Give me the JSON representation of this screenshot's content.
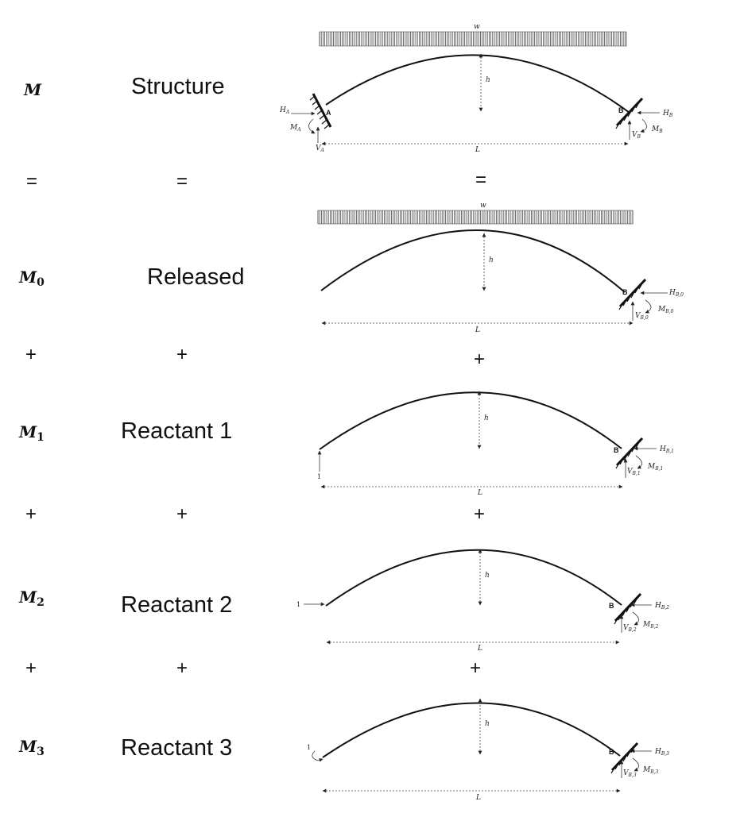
{
  "rows": [
    {
      "symbol": "M",
      "subscript": "",
      "label": "Structure",
      "load": "w",
      "height": "h",
      "span": "L",
      "point_a": "A",
      "point_b": "B",
      "a_reactions": {
        "h": {
          "base": "H",
          "sub": "A"
        },
        "m": {
          "base": "M",
          "sub": "A"
        },
        "v": {
          "base": "V",
          "sub": "A"
        }
      },
      "b_reactions": {
        "h": {
          "base": "H",
          "sub": "B"
        },
        "m": {
          "base": "M",
          "sub": "B"
        },
        "v": {
          "base": "V",
          "sub": "B"
        }
      },
      "unit_load": ""
    },
    {
      "symbol": "M",
      "subscript": "0",
      "label": "Released",
      "load": "w",
      "height": "h",
      "span": "L",
      "point_a": "",
      "point_b": "B",
      "b_reactions": {
        "h": {
          "base": "H",
          "sub": "B,0"
        },
        "m": {
          "base": "M",
          "sub": "B,0"
        },
        "v": {
          "base": "V",
          "sub": "B,0"
        }
      },
      "unit_load": ""
    },
    {
      "symbol": "M",
      "subscript": "1",
      "label": "Reactant 1",
      "load": "",
      "height": "h",
      "span": "L",
      "point_a": "",
      "point_b": "B",
      "b_reactions": {
        "h": {
          "base": "H",
          "sub": "B,1"
        },
        "m": {
          "base": "M",
          "sub": "B,1"
        },
        "v": {
          "base": "V",
          "sub": "B,1"
        }
      },
      "unit_load": "1"
    },
    {
      "symbol": "M",
      "subscript": "2",
      "label": "Reactant 2",
      "load": "",
      "height": "h",
      "span": "L",
      "point_a": "",
      "point_b": "B",
      "b_reactions": {
        "h": {
          "base": "H",
          "sub": "B,2"
        },
        "m": {
          "base": "M",
          "sub": "B,2"
        },
        "v": {
          "base": "V",
          "sub": "B,2"
        }
      },
      "unit_load": "1"
    },
    {
      "symbol": "M",
      "subscript": "3",
      "label": "Reactant 3",
      "load": "",
      "height": "h",
      "span": "L",
      "point_a": "",
      "point_b": "B",
      "b_reactions": {
        "h": {
          "base": "H",
          "sub": "B,3"
        },
        "m": {
          "base": "M",
          "sub": "B,3"
        },
        "v": {
          "base": "V",
          "sub": "B,3"
        }
      },
      "unit_load": "1"
    }
  ],
  "operators": [
    "=",
    "+",
    "+",
    "+"
  ]
}
